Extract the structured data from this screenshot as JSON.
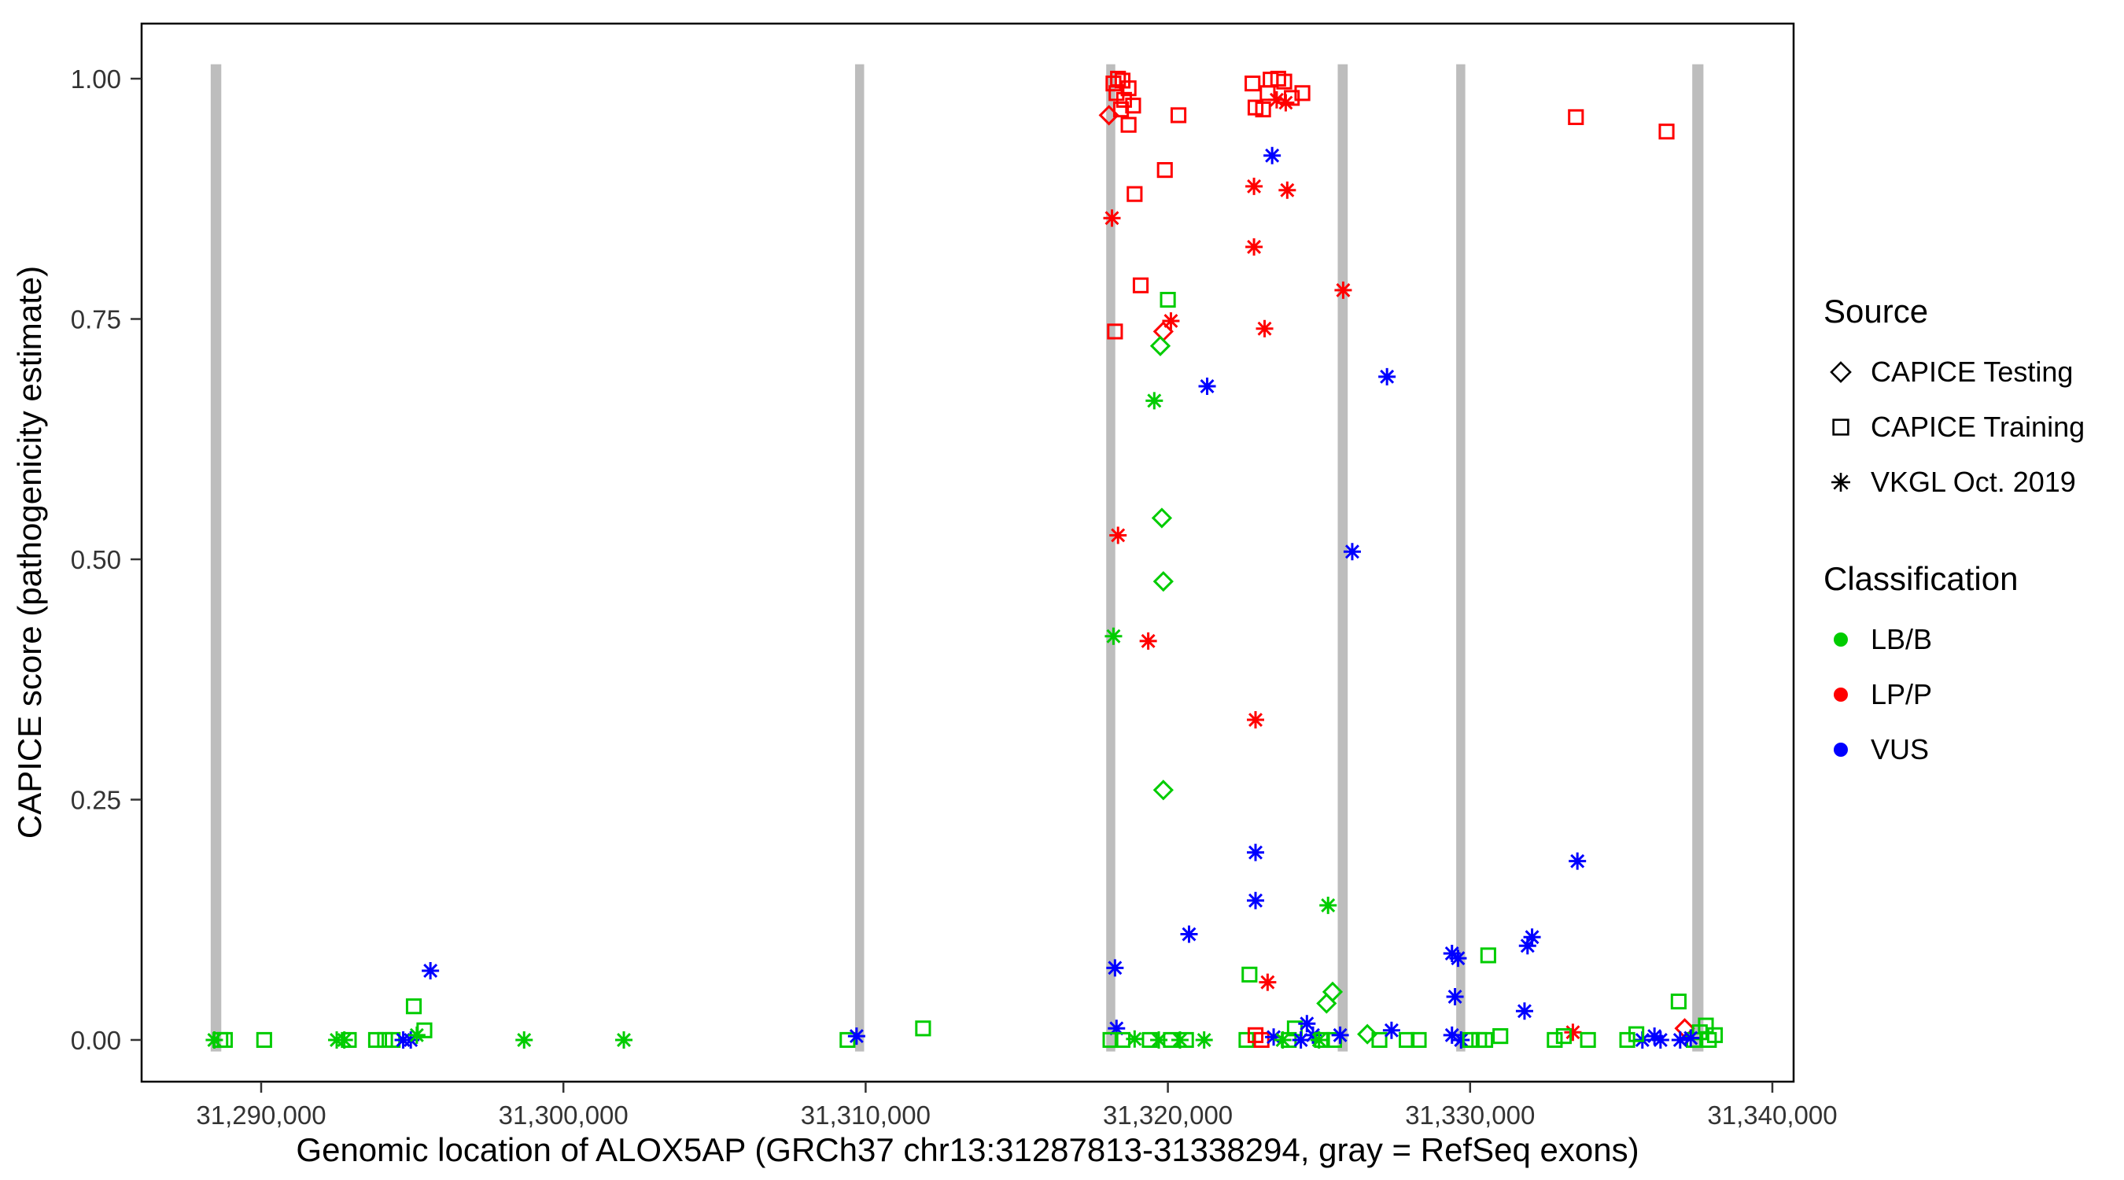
{
  "chart_data": {
    "type": "scatter",
    "title": "",
    "xlabel": "Genomic location of ALOX5AP (GRCh37 chr13:31287813-31338294, gray = RefSeq exons)",
    "ylabel": "CAPICE score (pathogenicity estimate)",
    "xlim": [
      31286044,
      31340703
    ],
    "ylim": [
      -0.0434,
      1.0573
    ],
    "grid": "off",
    "x_ticks": [
      {
        "value": 31290000,
        "label": "31,290,000"
      },
      {
        "value": 31300000,
        "label": "31,300,000"
      },
      {
        "value": 31310000,
        "label": "31,310,000"
      },
      {
        "value": 31320000,
        "label": "31,320,000"
      },
      {
        "value": 31330000,
        "label": "31,330,000"
      },
      {
        "value": 31340000,
        "label": "31,340,000"
      }
    ],
    "y_ticks": [
      {
        "value": 0.0,
        "label": "0.00"
      },
      {
        "value": 0.25,
        "label": "0.25"
      },
      {
        "value": 0.5,
        "label": "0.50"
      },
      {
        "value": 0.75,
        "label": "0.75"
      },
      {
        "value": 1.0,
        "label": "1.00"
      }
    ],
    "exons": [
      [
        31288330,
        31288680
      ],
      [
        31309650,
        31309950
      ],
      [
        31317960,
        31318260
      ],
      [
        31325620,
        31325950
      ],
      [
        31329540,
        31329840
      ],
      [
        31337350,
        31337720
      ]
    ],
    "exon_y": [
      -0.012,
      1.015
    ],
    "colors": {
      "exon": "#BDBDBD",
      "panel_border": "#000000",
      "tick": "#333333",
      "classification": {
        "LB/B": "#00CC00",
        "LP/P": "#FF0000",
        "VUS": "#0000FF"
      }
    },
    "legend": {
      "position": "right",
      "source": {
        "title": "Source",
        "items": [
          {
            "label": "CAPICE Testing",
            "shape": "diamond"
          },
          {
            "label": "CAPICE Training",
            "shape": "square"
          },
          {
            "label": "VKGL Oct. 2019",
            "shape": "asterisk"
          }
        ]
      },
      "classification": {
        "title": "Classification",
        "items": [
          {
            "label": "LB/B",
            "color": "#00CC00"
          },
          {
            "label": "LP/P",
            "color": "#FF0000"
          },
          {
            "label": "VUS",
            "color": "#0000FF"
          }
        ]
      }
    },
    "points": [
      [
        31288450,
        0.0,
        "vkgl",
        "LB/B"
      ],
      [
        31288650,
        0.0,
        "training",
        "LB/B"
      ],
      [
        31288800,
        0.0,
        "training",
        "LB/B"
      ],
      [
        31290100,
        0.0,
        "training",
        "LB/B"
      ],
      [
        31292500,
        0.0,
        "vkgl",
        "LB/B"
      ],
      [
        31292750,
        0.0,
        "vkgl",
        "LB/B"
      ],
      [
        31292900,
        0.0,
        "training",
        "LB/B"
      ],
      [
        31293800,
        0.0,
        "training",
        "LB/B"
      ],
      [
        31294100,
        0.0,
        "training",
        "LB/B"
      ],
      [
        31294350,
        0.0,
        "training",
        "LB/B"
      ],
      [
        31294700,
        0.0,
        "vkgl",
        "VUS"
      ],
      [
        31294950,
        0.0,
        "vkgl",
        "VUS"
      ],
      [
        31295150,
        0.005,
        "vkgl",
        "LB/B"
      ],
      [
        31295050,
        0.035,
        "training",
        "LB/B"
      ],
      [
        31295400,
        0.01,
        "training",
        "LB/B"
      ],
      [
        31295600,
        0.072,
        "vkgl",
        "VUS"
      ],
      [
        31298700,
        0.0,
        "vkgl",
        "LB/B"
      ],
      [
        31302000,
        0.0,
        "vkgl",
        "LB/B"
      ],
      [
        31309400,
        0.0,
        "training",
        "LB/B"
      ],
      [
        31309700,
        0.004,
        "vkgl",
        "VUS"
      ],
      [
        31311900,
        0.012,
        "training",
        "LB/B"
      ],
      [
        31318050,
        0.962,
        "testing",
        "LP/P"
      ],
      [
        31318200,
        0.995,
        "training",
        "LP/P"
      ],
      [
        31318350,
        1.0,
        "training",
        "LP/P"
      ],
      [
        31318500,
        0.998,
        "training",
        "LP/P"
      ],
      [
        31318300,
        0.985,
        "training",
        "LP/P"
      ],
      [
        31318550,
        0.978,
        "training",
        "LP/P"
      ],
      [
        31318700,
        0.99,
        "training",
        "LP/P"
      ],
      [
        31318450,
        0.968,
        "training",
        "LP/P"
      ],
      [
        31318850,
        0.972,
        "training",
        "LP/P"
      ],
      [
        31318700,
        0.952,
        "training",
        "LP/P"
      ],
      [
        31319900,
        0.905,
        "training",
        "LP/P"
      ],
      [
        31320350,
        0.962,
        "training",
        "LP/P"
      ],
      [
        31318900,
        0.88,
        "training",
        "LP/P"
      ],
      [
        31318150,
        0.855,
        "vkgl",
        "LP/P"
      ],
      [
        31319100,
        0.785,
        "training",
        "LP/P"
      ],
      [
        31318250,
        0.737,
        "training",
        "LP/P"
      ],
      [
        31319850,
        0.737,
        "testing",
        "LP/P"
      ],
      [
        31320100,
        0.748,
        "vkgl",
        "LP/P"
      ],
      [
        31320000,
        0.77,
        "training",
        "LB/B"
      ],
      [
        31319750,
        0.722,
        "testing",
        "LB/B"
      ],
      [
        31319550,
        0.665,
        "vkgl",
        "LB/B"
      ],
      [
        31318350,
        0.525,
        "vkgl",
        "LP/P"
      ],
      [
        31319800,
        0.543,
        "testing",
        "LB/B"
      ],
      [
        31319850,
        0.477,
        "testing",
        "LB/B"
      ],
      [
        31318200,
        0.42,
        "vkgl",
        "LB/B"
      ],
      [
        31319350,
        0.415,
        "vkgl",
        "LP/P"
      ],
      [
        31319850,
        0.26,
        "testing",
        "LB/B"
      ],
      [
        31321300,
        0.68,
        "vkgl",
        "VUS"
      ],
      [
        31318250,
        0.075,
        "vkgl",
        "VUS"
      ],
      [
        31320700,
        0.11,
        "vkgl",
        "VUS"
      ],
      [
        31318300,
        0.012,
        "vkgl",
        "VUS"
      ],
      [
        31318100,
        0.0,
        "training",
        "LB/B"
      ],
      [
        31318500,
        0.0,
        "training",
        "LB/B"
      ],
      [
        31318900,
        0.001,
        "vkgl",
        "LB/B"
      ],
      [
        31319400,
        0.0,
        "training",
        "LB/B"
      ],
      [
        31319700,
        0.0,
        "vkgl",
        "LB/B"
      ],
      [
        31320100,
        0.0,
        "training",
        "LB/B"
      ],
      [
        31320400,
        0.0,
        "vkgl",
        "LB/B"
      ],
      [
        31320600,
        0.0,
        "training",
        "LB/B"
      ],
      [
        31321200,
        0.0,
        "vkgl",
        "LB/B"
      ],
      [
        31322800,
        0.995,
        "training",
        "LP/P"
      ],
      [
        31323400,
        0.999,
        "training",
        "LP/P"
      ],
      [
        31323650,
        1.0,
        "training",
        "LP/P"
      ],
      [
        31323850,
        0.997,
        "training",
        "LP/P"
      ],
      [
        31323300,
        0.985,
        "training",
        "LP/P"
      ],
      [
        31323600,
        0.978,
        "vkgl",
        "LP/P"
      ],
      [
        31323900,
        0.975,
        "vkgl",
        "LP/P"
      ],
      [
        31324100,
        0.98,
        "training",
        "LP/P"
      ],
      [
        31322900,
        0.97,
        "training",
        "LP/P"
      ],
      [
        31323150,
        0.968,
        "training",
        "LP/P"
      ],
      [
        31324450,
        0.985,
        "training",
        "LP/P"
      ],
      [
        31323450,
        0.92,
        "vkgl",
        "VUS"
      ],
      [
        31322850,
        0.888,
        "vkgl",
        "LP/P"
      ],
      [
        31323950,
        0.884,
        "vkgl",
        "LP/P"
      ],
      [
        31322850,
        0.825,
        "vkgl",
        "LP/P"
      ],
      [
        31323200,
        0.74,
        "vkgl",
        "LP/P"
      ],
      [
        31325800,
        0.78,
        "vkgl",
        "LP/P"
      ],
      [
        31322900,
        0.333,
        "vkgl",
        "LP/P"
      ],
      [
        31322900,
        0.195,
        "vkgl",
        "VUS"
      ],
      [
        31322900,
        0.145,
        "vkgl",
        "VUS"
      ],
      [
        31327250,
        0.69,
        "vkgl",
        "VUS"
      ],
      [
        31326100,
        0.508,
        "vkgl",
        "VUS"
      ],
      [
        31325300,
        0.14,
        "vkgl",
        "LB/B"
      ],
      [
        31323300,
        0.06,
        "vkgl",
        "LP/P"
      ],
      [
        31322700,
        0.068,
        "training",
        "LB/B"
      ],
      [
        31325450,
        0.05,
        "testing",
        "LB/B"
      ],
      [
        31325250,
        0.038,
        "testing",
        "LB/B"
      ],
      [
        31322600,
        0.0,
        "training",
        "LB/B"
      ],
      [
        31322900,
        0.005,
        "training",
        "LP/P"
      ],
      [
        31323100,
        0.0,
        "training",
        "LP/P"
      ],
      [
        31323500,
        0.003,
        "vkgl",
        "VUS"
      ],
      [
        31323800,
        0.0,
        "vkgl",
        "LB/B"
      ],
      [
        31324000,
        0.0,
        "training",
        "LB/B"
      ],
      [
        31324200,
        0.012,
        "training",
        "LB/B"
      ],
      [
        31324400,
        0.0,
        "vkgl",
        "VUS"
      ],
      [
        31324600,
        0.017,
        "vkgl",
        "VUS"
      ],
      [
        31324800,
        0.005,
        "vkgl",
        "VUS"
      ],
      [
        31325000,
        0.0,
        "vkgl",
        "LB/B"
      ],
      [
        31325100,
        0.0,
        "training",
        "LB/B"
      ],
      [
        31325500,
        0.0,
        "training",
        "LB/B"
      ],
      [
        31325700,
        0.005,
        "vkgl",
        "VUS"
      ],
      [
        31326600,
        0.006,
        "testing",
        "LB/B"
      ],
      [
        31327000,
        0.0,
        "training",
        "LB/B"
      ],
      [
        31327400,
        0.01,
        "vkgl",
        "VUS"
      ],
      [
        31327900,
        0.0,
        "training",
        "LB/B"
      ],
      [
        31328300,
        0.0,
        "training",
        "LB/B"
      ],
      [
        31329400,
        0.09,
        "vkgl",
        "VUS"
      ],
      [
        31329600,
        0.085,
        "vkgl",
        "VUS"
      ],
      [
        31329500,
        0.045,
        "vkgl",
        "VUS"
      ],
      [
        31329400,
        0.005,
        "vkgl",
        "VUS"
      ],
      [
        31329700,
        0.0,
        "vkgl",
        "VUS"
      ],
      [
        31330000,
        0.0,
        "training",
        "LB/B"
      ],
      [
        31330300,
        0.0,
        "training",
        "LB/B"
      ],
      [
        31330600,
        0.088,
        "training",
        "LB/B"
      ],
      [
        31330500,
        0.0,
        "training",
        "LB/B"
      ],
      [
        31331000,
        0.004,
        "training",
        "LB/B"
      ],
      [
        31331800,
        0.03,
        "vkgl",
        "VUS"
      ],
      [
        31331900,
        0.098,
        "vkgl",
        "VUS"
      ],
      [
        31332050,
        0.107,
        "vkgl",
        "VUS"
      ],
      [
        31333550,
        0.186,
        "vkgl",
        "VUS"
      ],
      [
        31333500,
        0.96,
        "training",
        "LP/P"
      ],
      [
        31333400,
        0.008,
        "vkgl",
        "LP/P"
      ],
      [
        31332800,
        0.0,
        "training",
        "LB/B"
      ],
      [
        31333100,
        0.004,
        "training",
        "LB/B"
      ],
      [
        31333900,
        0.0,
        "training",
        "LB/B"
      ],
      [
        31336500,
        0.945,
        "training",
        "LP/P"
      ],
      [
        31335700,
        0.0,
        "vkgl",
        "VUS"
      ],
      [
        31336100,
        0.004,
        "vkgl",
        "VUS"
      ],
      [
        31336300,
        0.0,
        "vkgl",
        "VUS"
      ],
      [
        31335200,
        0.0,
        "training",
        "LB/B"
      ],
      [
        31335500,
        0.006,
        "training",
        "LB/B"
      ],
      [
        31337100,
        0.012,
        "testing",
        "LP/P"
      ],
      [
        31336900,
        0.04,
        "training",
        "LB/B"
      ],
      [
        31337400,
        0.0,
        "training",
        "LB/B"
      ],
      [
        31337600,
        0.008,
        "training",
        "LB/B"
      ],
      [
        31337800,
        0.015,
        "training",
        "LB/B"
      ],
      [
        31337900,
        0.0,
        "training",
        "LB/B"
      ],
      [
        31338100,
        0.005,
        "training",
        "LB/B"
      ],
      [
        31337300,
        0.002,
        "vkgl",
        "VUS"
      ],
      [
        31336950,
        0.0,
        "vkgl",
        "VUS"
      ]
    ]
  }
}
